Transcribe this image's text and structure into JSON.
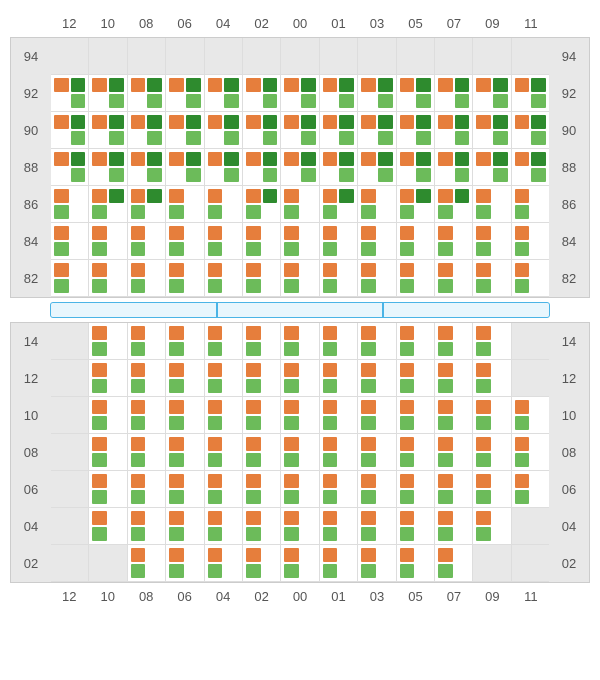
{
  "layout": {
    "columns": [
      "12",
      "10",
      "08",
      "06",
      "04",
      "02",
      "00",
      "01",
      "03",
      "05",
      "07",
      "09",
      "11"
    ],
    "marker_colors": {
      "o": "#e67e3c",
      "g": "#6cbb5a",
      "dg": "#2e8b2e"
    },
    "background_color": "#e8e8e8",
    "cell_background": "#ffffff",
    "grid_line_color": "#dddddd",
    "label_color": "#555555",
    "label_fontsize": 13,
    "divider": {
      "segments": 3,
      "border_color": "#4bb4e6",
      "fill_color": "#e8f6fd"
    }
  },
  "topSection": {
    "rows": [
      {
        "label": "94",
        "cells": [
          null,
          null,
          null,
          null,
          null,
          null,
          null,
          null,
          null,
          null,
          null,
          null,
          null
        ]
      },
      {
        "label": "92",
        "cells": [
          [
            "o",
            "dg",
            "",
            "g"
          ],
          [
            "o",
            "dg",
            "",
            "g"
          ],
          [
            "o",
            "dg",
            "",
            "g"
          ],
          [
            "o",
            "dg",
            "",
            "g"
          ],
          [
            "o",
            "dg",
            "",
            "g"
          ],
          [
            "o",
            "dg",
            "",
            "g"
          ],
          [
            "o",
            "dg",
            "",
            "g"
          ],
          [
            "o",
            "dg",
            "",
            "g"
          ],
          [
            "o",
            "dg",
            "",
            "g"
          ],
          [
            "o",
            "dg",
            "",
            "g"
          ],
          [
            "o",
            "dg",
            "",
            "g"
          ],
          [
            "o",
            "dg",
            "",
            "g"
          ],
          [
            "o",
            "dg",
            "",
            "g"
          ]
        ]
      },
      {
        "label": "90",
        "cells": [
          [
            "o",
            "dg",
            "",
            "g"
          ],
          [
            "o",
            "dg",
            "",
            "g"
          ],
          [
            "o",
            "dg",
            "",
            "g"
          ],
          [
            "o",
            "dg",
            "",
            "g"
          ],
          [
            "o",
            "dg",
            "",
            "g"
          ],
          [
            "o",
            "dg",
            "",
            "g"
          ],
          [
            "o",
            "dg",
            "",
            "g"
          ],
          [
            "o",
            "dg",
            "",
            "g"
          ],
          [
            "o",
            "dg",
            "",
            "g"
          ],
          [
            "o",
            "dg",
            "",
            "g"
          ],
          [
            "o",
            "dg",
            "",
            "g"
          ],
          [
            "o",
            "dg",
            "",
            "g"
          ],
          [
            "o",
            "dg",
            "",
            "g"
          ]
        ]
      },
      {
        "label": "88",
        "cells": [
          [
            "o",
            "dg",
            "",
            "g"
          ],
          [
            "o",
            "dg",
            "",
            "g"
          ],
          [
            "o",
            "dg",
            "",
            "g"
          ],
          [
            "o",
            "dg",
            "",
            "g"
          ],
          [
            "o",
            "dg",
            "",
            "g"
          ],
          [
            "o",
            "dg",
            "",
            "g"
          ],
          [
            "o",
            "dg",
            "",
            "g"
          ],
          [
            "o",
            "dg",
            "",
            "g"
          ],
          [
            "o",
            "dg",
            "",
            "g"
          ],
          [
            "o",
            "dg",
            "",
            "g"
          ],
          [
            "o",
            "dg",
            "",
            "g"
          ],
          [
            "o",
            "dg",
            "",
            "g"
          ],
          [
            "o",
            "dg",
            "",
            "g"
          ]
        ]
      },
      {
        "label": "86",
        "cells": [
          [
            "o",
            "",
            "g",
            ""
          ],
          [
            "o",
            "dg",
            "g",
            ""
          ],
          [
            "o",
            "dg",
            "g",
            ""
          ],
          [
            "o",
            "",
            "g",
            ""
          ],
          [
            "o",
            "",
            "g",
            ""
          ],
          [
            "o",
            "dg",
            "g",
            ""
          ],
          [
            "o",
            "",
            "g",
            ""
          ],
          [
            "o",
            "dg",
            "g",
            ""
          ],
          [
            "o",
            "",
            "g",
            ""
          ],
          [
            "o",
            "dg",
            "g",
            ""
          ],
          [
            "o",
            "dg",
            "g",
            ""
          ],
          [
            "o",
            "",
            "g",
            ""
          ],
          [
            "o",
            "",
            "g",
            ""
          ]
        ]
      },
      {
        "label": "84",
        "cells": [
          [
            "o",
            "",
            "g",
            ""
          ],
          [
            "o",
            "",
            "g",
            ""
          ],
          [
            "o",
            "",
            "g",
            ""
          ],
          [
            "o",
            "",
            "g",
            ""
          ],
          [
            "o",
            "",
            "g",
            ""
          ],
          [
            "o",
            "",
            "g",
            ""
          ],
          [
            "o",
            "",
            "g",
            ""
          ],
          [
            "o",
            "",
            "g",
            ""
          ],
          [
            "o",
            "",
            "g",
            ""
          ],
          [
            "o",
            "",
            "g",
            ""
          ],
          [
            "o",
            "",
            "g",
            ""
          ],
          [
            "o",
            "",
            "g",
            ""
          ],
          [
            "o",
            "",
            "g",
            ""
          ]
        ]
      },
      {
        "label": "82",
        "cells": [
          [
            "o",
            "",
            "g",
            ""
          ],
          [
            "o",
            "",
            "g",
            ""
          ],
          [
            "o",
            "",
            "g",
            ""
          ],
          [
            "o",
            "",
            "g",
            ""
          ],
          [
            "o",
            "",
            "g",
            ""
          ],
          [
            "o",
            "",
            "g",
            ""
          ],
          [
            "o",
            "",
            "g",
            ""
          ],
          [
            "o",
            "",
            "g",
            ""
          ],
          [
            "o",
            "",
            "g",
            ""
          ],
          [
            "o",
            "",
            "g",
            ""
          ],
          [
            "o",
            "",
            "g",
            ""
          ],
          [
            "o",
            "",
            "g",
            ""
          ],
          [
            "o",
            "",
            "g",
            ""
          ]
        ]
      }
    ]
  },
  "bottomSection": {
    "rows": [
      {
        "label": "14",
        "cells": [
          null,
          [
            "o",
            "",
            "g",
            ""
          ],
          [
            "o",
            "",
            "g",
            ""
          ],
          [
            "o",
            "",
            "g",
            ""
          ],
          [
            "o",
            "",
            "g",
            ""
          ],
          [
            "o",
            "",
            "g",
            ""
          ],
          [
            "o",
            "",
            "g",
            ""
          ],
          [
            "o",
            "",
            "g",
            ""
          ],
          [
            "o",
            "",
            "g",
            ""
          ],
          [
            "o",
            "",
            "g",
            ""
          ],
          [
            "o",
            "",
            "g",
            ""
          ],
          [
            "o",
            "",
            "g",
            ""
          ],
          null
        ]
      },
      {
        "label": "12",
        "cells": [
          null,
          [
            "o",
            "",
            "g",
            ""
          ],
          [
            "o",
            "",
            "g",
            ""
          ],
          [
            "o",
            "",
            "g",
            ""
          ],
          [
            "o",
            "",
            "g",
            ""
          ],
          [
            "o",
            "",
            "g",
            ""
          ],
          [
            "o",
            "",
            "g",
            ""
          ],
          [
            "o",
            "",
            "g",
            ""
          ],
          [
            "o",
            "",
            "g",
            ""
          ],
          [
            "o",
            "",
            "g",
            ""
          ],
          [
            "o",
            "",
            "g",
            ""
          ],
          [
            "o",
            "",
            "g",
            ""
          ],
          null
        ]
      },
      {
        "label": "10",
        "cells": [
          null,
          [
            "o",
            "",
            "g",
            ""
          ],
          [
            "o",
            "",
            "g",
            ""
          ],
          [
            "o",
            "",
            "g",
            ""
          ],
          [
            "o",
            "",
            "g",
            ""
          ],
          [
            "o",
            "",
            "g",
            ""
          ],
          [
            "o",
            "",
            "g",
            ""
          ],
          [
            "o",
            "",
            "g",
            ""
          ],
          [
            "o",
            "",
            "g",
            ""
          ],
          [
            "o",
            "",
            "g",
            ""
          ],
          [
            "o",
            "",
            "g",
            ""
          ],
          [
            "o",
            "",
            "g",
            ""
          ],
          [
            "o",
            "",
            "g",
            ""
          ]
        ]
      },
      {
        "label": "08",
        "cells": [
          null,
          [
            "o",
            "",
            "g",
            ""
          ],
          [
            "o",
            "",
            "g",
            ""
          ],
          [
            "o",
            "",
            "g",
            ""
          ],
          [
            "o",
            "",
            "g",
            ""
          ],
          [
            "o",
            "",
            "g",
            ""
          ],
          [
            "o",
            "",
            "g",
            ""
          ],
          [
            "o",
            "",
            "g",
            ""
          ],
          [
            "o",
            "",
            "g",
            ""
          ],
          [
            "o",
            "",
            "g",
            ""
          ],
          [
            "o",
            "",
            "g",
            ""
          ],
          [
            "o",
            "",
            "g",
            ""
          ],
          [
            "o",
            "",
            "g",
            ""
          ]
        ]
      },
      {
        "label": "06",
        "cells": [
          null,
          [
            "o",
            "",
            "g",
            ""
          ],
          [
            "o",
            "",
            "g",
            ""
          ],
          [
            "o",
            "",
            "g",
            ""
          ],
          [
            "o",
            "",
            "g",
            ""
          ],
          [
            "o",
            "",
            "g",
            ""
          ],
          [
            "o",
            "",
            "g",
            ""
          ],
          [
            "o",
            "",
            "g",
            ""
          ],
          [
            "o",
            "",
            "g",
            ""
          ],
          [
            "o",
            "",
            "g",
            ""
          ],
          [
            "o",
            "",
            "g",
            ""
          ],
          [
            "o",
            "",
            "g",
            ""
          ],
          [
            "o",
            "",
            "g",
            ""
          ]
        ]
      },
      {
        "label": "04",
        "cells": [
          null,
          [
            "o",
            "",
            "g",
            ""
          ],
          [
            "o",
            "",
            "g",
            ""
          ],
          [
            "o",
            "",
            "g",
            ""
          ],
          [
            "o",
            "",
            "g",
            ""
          ],
          [
            "o",
            "",
            "g",
            ""
          ],
          [
            "o",
            "",
            "g",
            ""
          ],
          [
            "o",
            "",
            "g",
            ""
          ],
          [
            "o",
            "",
            "g",
            ""
          ],
          [
            "o",
            "",
            "g",
            ""
          ],
          [
            "o",
            "",
            "g",
            ""
          ],
          [
            "o",
            "",
            "g",
            ""
          ],
          null
        ]
      },
      {
        "label": "02",
        "cells": [
          null,
          null,
          [
            "o",
            "",
            "g",
            ""
          ],
          [
            "o",
            "",
            "g",
            ""
          ],
          [
            "o",
            "",
            "g",
            ""
          ],
          [
            "o",
            "",
            "g",
            ""
          ],
          [
            "o",
            "",
            "g",
            ""
          ],
          [
            "o",
            "",
            "g",
            ""
          ],
          [
            "o",
            "",
            "g",
            ""
          ],
          [
            "o",
            "",
            "g",
            ""
          ],
          [
            "o",
            "",
            "g",
            ""
          ],
          null,
          null
        ]
      }
    ]
  }
}
